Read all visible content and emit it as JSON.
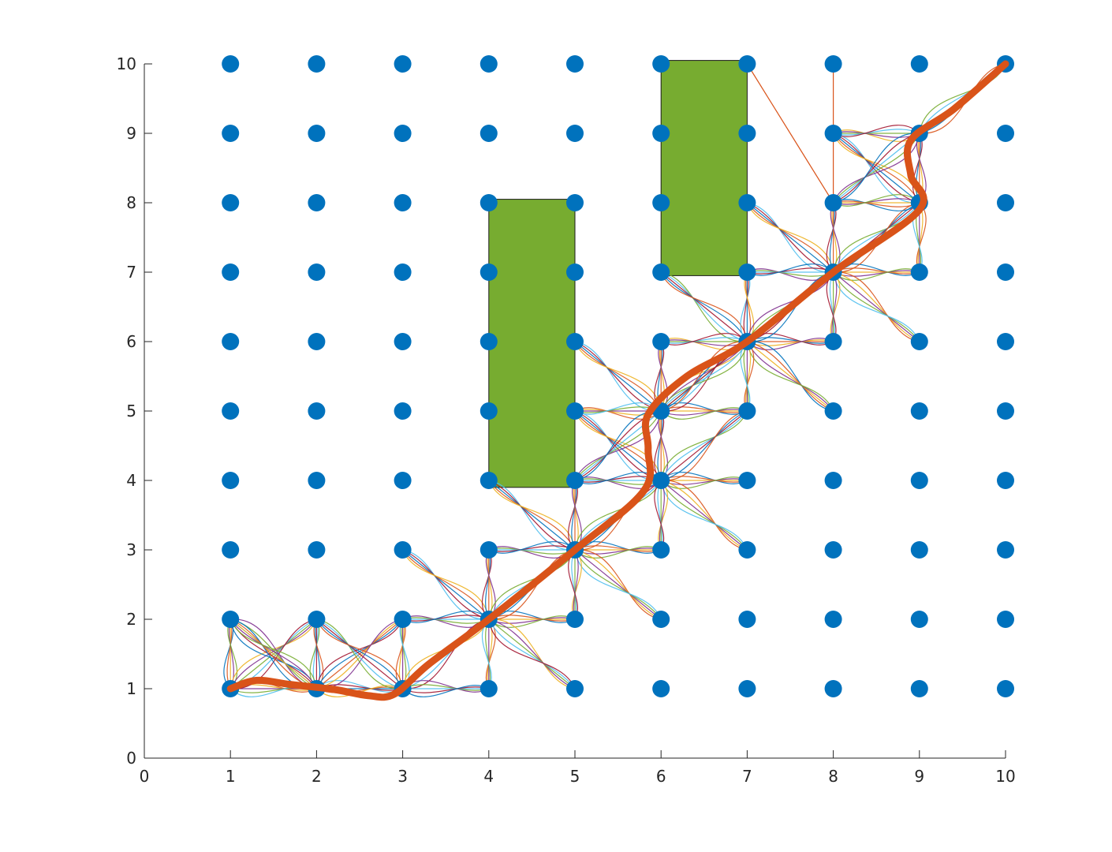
{
  "chart_data": {
    "type": "scatter",
    "title": "",
    "xlabel": "",
    "ylabel": "",
    "xlim": [
      0,
      10
    ],
    "ylim": [
      0,
      10
    ],
    "grid": false,
    "x_ticks": [
      "0",
      "1",
      "2",
      "3",
      "4",
      "5",
      "6",
      "7",
      "8",
      "9",
      "10"
    ],
    "y_ticks": [
      "0",
      "1",
      "2",
      "3",
      "4",
      "5",
      "6",
      "7",
      "8",
      "9",
      "10"
    ],
    "grid_points": {
      "x_range": [
        1,
        10
      ],
      "y_range": [
        1,
        10
      ],
      "step": 1,
      "color": "#0072BD"
    },
    "obstacles": [
      {
        "x": [
          4,
          5
        ],
        "y": [
          3.9,
          8.05
        ],
        "color": "#77AC30"
      },
      {
        "x": [
          6,
          7
        ],
        "y": [
          6.95,
          10.05
        ],
        "color": "#77AC30"
      }
    ],
    "final_path": {
      "color": "#D95319",
      "points": [
        [
          1,
          1
        ],
        [
          1.3,
          1.12
        ],
        [
          1.7,
          1.06
        ],
        [
          2.2,
          0.99
        ],
        [
          2.6,
          0.9
        ],
        [
          2.9,
          0.92
        ],
        [
          3.3,
          1.35
        ],
        [
          4,
          2
        ],
        [
          5,
          3
        ],
        [
          5.8,
          3.85
        ],
        [
          5.85,
          4.45
        ],
        [
          5.85,
          4.95
        ],
        [
          6.3,
          5.5
        ],
        [
          7,
          6
        ],
        [
          8,
          7
        ],
        [
          9,
          7.9
        ],
        [
          8.9,
          8.4
        ],
        [
          8.9,
          8.9
        ],
        [
          9.4,
          9.35
        ],
        [
          10,
          10
        ]
      ]
    },
    "explored_edges": [
      [
        [
          1,
          1
        ],
        [
          1,
          2
        ]
      ],
      [
        [
          1,
          1
        ],
        [
          2,
          1
        ]
      ],
      [
        [
          1,
          1
        ],
        [
          2,
          2
        ]
      ],
      [
        [
          1,
          2
        ],
        [
          2,
          1
        ]
      ],
      [
        [
          2,
          1
        ],
        [
          2,
          2
        ]
      ],
      [
        [
          2,
          1
        ],
        [
          3,
          1
        ]
      ],
      [
        [
          2,
          1
        ],
        [
          3,
          2
        ]
      ],
      [
        [
          2,
          1
        ],
        [
          1,
          2
        ]
      ],
      [
        [
          3,
          1
        ],
        [
          3,
          2
        ]
      ],
      [
        [
          3,
          1
        ],
        [
          4,
          2
        ]
      ],
      [
        [
          3,
          1
        ],
        [
          4,
          1
        ]
      ],
      [
        [
          3,
          1
        ],
        [
          2,
          2
        ]
      ],
      [
        [
          4,
          2
        ],
        [
          3,
          3
        ]
      ],
      [
        [
          4,
          2
        ],
        [
          4,
          3
        ]
      ],
      [
        [
          4,
          2
        ],
        [
          5,
          2
        ]
      ],
      [
        [
          4,
          2
        ],
        [
          4,
          1
        ]
      ],
      [
        [
          4,
          2
        ],
        [
          5,
          1
        ]
      ],
      [
        [
          4,
          2
        ],
        [
          3,
          2
        ]
      ],
      [
        [
          4,
          2
        ],
        [
          5,
          3
        ]
      ],
      [
        [
          5,
          3
        ],
        [
          4,
          4
        ]
      ],
      [
        [
          5,
          3
        ],
        [
          5,
          4
        ]
      ],
      [
        [
          5,
          3
        ],
        [
          6,
          3
        ]
      ],
      [
        [
          5,
          3
        ],
        [
          6,
          2
        ]
      ],
      [
        [
          5,
          3
        ],
        [
          5,
          2
        ]
      ],
      [
        [
          5,
          3
        ],
        [
          4,
          3
        ]
      ],
      [
        [
          5,
          3
        ],
        [
          6,
          4
        ]
      ],
      [
        [
          6,
          4
        ],
        [
          5,
          5
        ]
      ],
      [
        [
          6,
          4
        ],
        [
          6,
          5
        ]
      ],
      [
        [
          6,
          4
        ],
        [
          7,
          4
        ]
      ],
      [
        [
          6,
          4
        ],
        [
          7,
          3
        ]
      ],
      [
        [
          6,
          4
        ],
        [
          6,
          3
        ]
      ],
      [
        [
          6,
          4
        ],
        [
          5,
          4
        ]
      ],
      [
        [
          6,
          4
        ],
        [
          7,
          5
        ]
      ],
      [
        [
          6,
          5
        ],
        [
          5,
          6
        ]
      ],
      [
        [
          6,
          5
        ],
        [
          6,
          6
        ]
      ],
      [
        [
          6,
          5
        ],
        [
          7,
          5
        ]
      ],
      [
        [
          6,
          5
        ],
        [
          5,
          5
        ]
      ],
      [
        [
          6,
          5
        ],
        [
          7,
          6
        ]
      ],
      [
        [
          6,
          5
        ],
        [
          5,
          4
        ]
      ],
      [
        [
          7,
          6
        ],
        [
          6,
          7
        ]
      ],
      [
        [
          7,
          6
        ],
        [
          7,
          7
        ]
      ],
      [
        [
          7,
          6
        ],
        [
          8,
          6
        ]
      ],
      [
        [
          7,
          6
        ],
        [
          8,
          5
        ]
      ],
      [
        [
          7,
          6
        ],
        [
          7,
          5
        ]
      ],
      [
        [
          7,
          6
        ],
        [
          6,
          6
        ]
      ],
      [
        [
          7,
          6
        ],
        [
          8,
          7
        ]
      ],
      [
        [
          7,
          6
        ],
        [
          6,
          5
        ]
      ],
      [
        [
          8,
          7
        ],
        [
          7,
          8
        ]
      ],
      [
        [
          8,
          7
        ],
        [
          8,
          8
        ]
      ],
      [
        [
          8,
          7
        ],
        [
          9,
          7
        ]
      ],
      [
        [
          8,
          7
        ],
        [
          9,
          6
        ]
      ],
      [
        [
          8,
          7
        ],
        [
          8,
          6
        ]
      ],
      [
        [
          8,
          7
        ],
        [
          7,
          7
        ]
      ],
      [
        [
          8,
          7
        ],
        [
          9,
          8
        ]
      ],
      [
        [
          9,
          8
        ],
        [
          8,
          9
        ]
      ],
      [
        [
          9,
          8
        ],
        [
          9,
          9
        ]
      ],
      [
        [
          9,
          8
        ],
        [
          8,
          8
        ]
      ],
      [
        [
          9,
          8
        ],
        [
          9,
          7
        ]
      ],
      [
        [
          9,
          9
        ],
        [
          8,
          9
        ]
      ],
      [
        [
          9,
          9
        ],
        [
          8,
          8
        ]
      ],
      [
        [
          9,
          9
        ],
        [
          10,
          10
        ]
      ]
    ],
    "straight_edges": [
      [
        [
          7,
          10
        ],
        [
          8,
          8
        ]
      ],
      [
        [
          8,
          10
        ],
        [
          8,
          8
        ]
      ]
    ],
    "edge_palette": [
      "#0072BD",
      "#D95319",
      "#EDB120",
      "#7E2F8E",
      "#77AC30",
      "#4DBEEE",
      "#A2142F"
    ]
  }
}
